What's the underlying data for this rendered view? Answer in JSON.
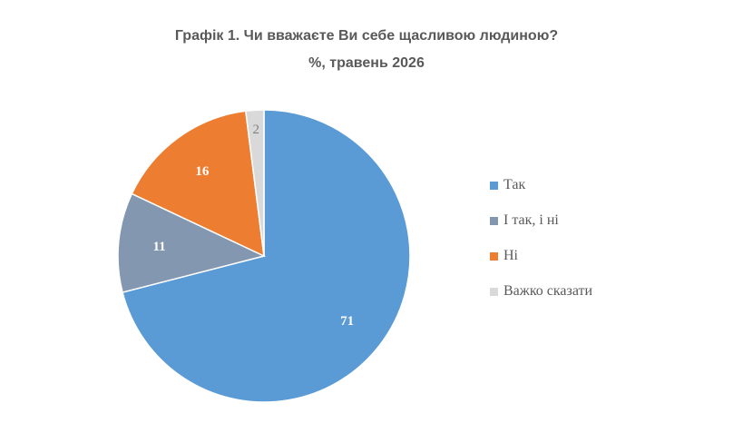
{
  "chart_data": {
    "type": "pie",
    "title": "Графік 1. Чи вважаєте Ви себе щасливою людиною?",
    "subtitle": "%, травень 2026",
    "categories": [
      "Так",
      "І так, і ні",
      "Ні",
      "Важко сказати"
    ],
    "values": [
      71,
      11,
      16,
      2
    ],
    "colors": [
      "#5b9bd5",
      "#8497b0",
      "#ed7d31",
      "#d9d9d9"
    ],
    "data_labels": [
      "71",
      "11",
      "16",
      "2"
    ],
    "legend_position": "right",
    "start_angle": "12 o'clock",
    "direction": "clockwise"
  }
}
